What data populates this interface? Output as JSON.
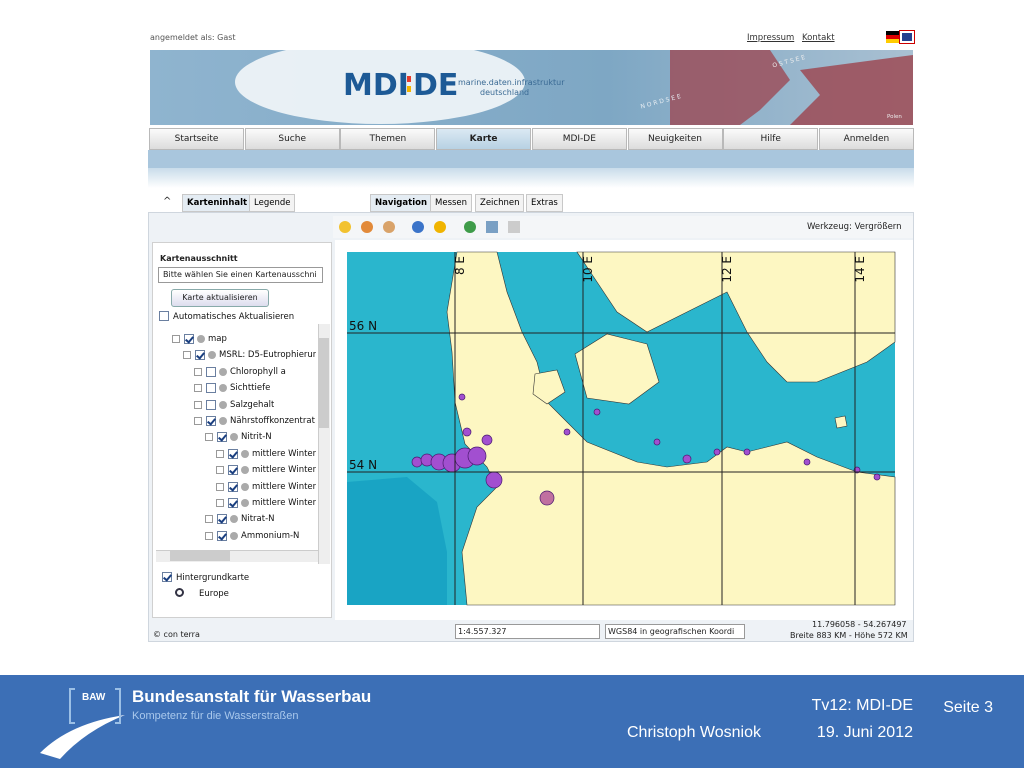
{
  "header": {
    "login": "angemeldet als: Gast",
    "links": [
      "Impressum",
      "Kontakt"
    ],
    "logo_left": "MDI",
    "logo_right": "DE",
    "tagline": [
      "marine.daten.infrastruktur",
      "deutschland"
    ],
    "map_labels": [
      "OSTSEE",
      "NORDSEE",
      "Polen"
    ]
  },
  "nav": [
    "Startseite",
    "Suche",
    "Themen",
    "Karte",
    "MDI-DE",
    "Neuigkeiten",
    "Hilfe",
    "Anmelden"
  ],
  "panel_tabs": [
    "Karteninhalt",
    "Legende"
  ],
  "tool_tabs": [
    "Navigation",
    "Messen",
    "Zeichnen",
    "Extras"
  ],
  "tool": "Werkzeug: Vergrößern",
  "sidebar": {
    "heading": "Kartenausschnitt",
    "select": "Bitte wählen Sie einen Kartenausschni",
    "button": "Karte aktualisieren",
    "auto": "Automatisches Aktualisieren",
    "tree": [
      "map",
      "MSRL: D5-Eutrophierur",
      "Chlorophyll a",
      "Sichttiefe",
      "Salzgehalt",
      "Nährstoffkonzentrat",
      "Nitrit-N",
      "mittlere Winterkor",
      "mittlere Winterkor",
      "mittlere Winterkor",
      "mittlere Winterkor",
      "Nitrat-N",
      "Ammonium-N"
    ],
    "background": "Hintergrundkarte",
    "background_option": "Europe"
  },
  "map": {
    "lon_labels": [
      "8 E",
      "10 E",
      "12 E",
      "14 E"
    ],
    "lat_labels": [
      "56 N",
      "54 N"
    ]
  },
  "status": {
    "copyright": "© con terra",
    "scale": "1:4.557.327",
    "crs": "WGS84 in geografischen Koordi",
    "coords": "11.796058 - 54.267497",
    "extent": "Breite 883 KM - Höhe 572 KM"
  },
  "footer": {
    "badge": "BAW",
    "org": "Bundesanstalt für Wasserbau",
    "claim": "Kompetenz für die Wasserstraßen",
    "talk": "Tv12: MDI-DE",
    "page": "Seite 3",
    "author": "Christoph Wosniok",
    "date": "19. Juni 2012"
  }
}
